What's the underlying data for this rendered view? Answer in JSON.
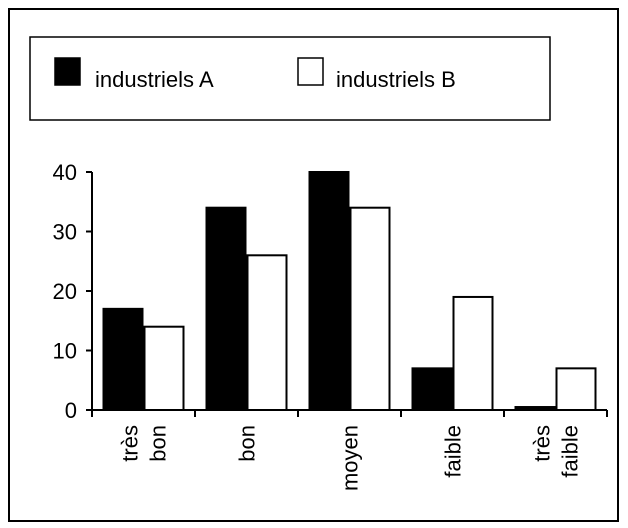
{
  "chart_data": {
    "type": "bar",
    "title": "",
    "xlabel": "",
    "ylabel": "",
    "categories": [
      [
        "très",
        "bon"
      ],
      [
        "bon"
      ],
      [
        "moyen"
      ],
      [
        "faible"
      ],
      [
        "très",
        "faible"
      ]
    ],
    "series": [
      {
        "name": "industriels A",
        "values": [
          17,
          34,
          40,
          7,
          0.5
        ],
        "color": "#000000"
      },
      {
        "name": "industriels B",
        "values": [
          14,
          26,
          34,
          19,
          7
        ],
        "color": "#ffffff"
      }
    ],
    "ylim": [
      0,
      40
    ],
    "yticks": [
      0,
      10,
      20,
      30,
      40
    ],
    "grid": false,
    "legend_position": "top"
  }
}
